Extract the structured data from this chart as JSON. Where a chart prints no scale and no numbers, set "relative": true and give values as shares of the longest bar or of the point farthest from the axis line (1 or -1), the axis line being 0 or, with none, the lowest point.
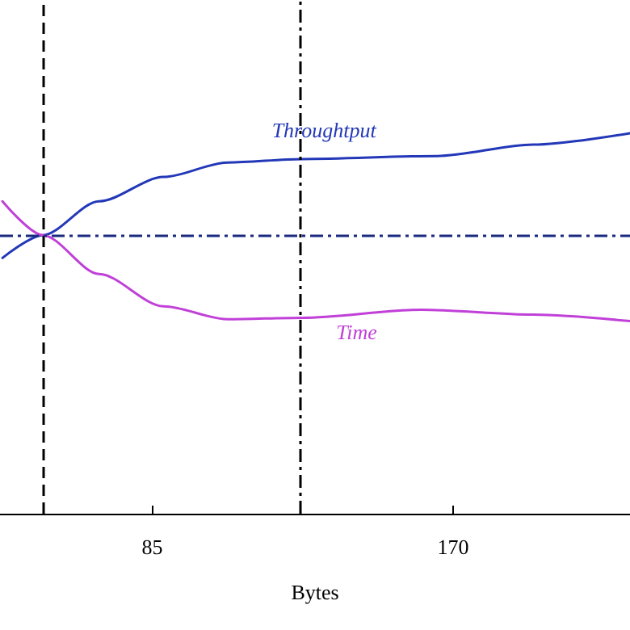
{
  "chart_data": {
    "type": "line",
    "xlabel": "Bytes",
    "relative": true,
    "xlim": [
      42,
      220
    ],
    "xticks": [
      85,
      170
    ],
    "grid": false,
    "legend": false,
    "marker": "none",
    "line_style": "solid",
    "series": [
      {
        "name": "Throughtput",
        "color": "#2338b8",
        "x": [
          42.7,
          54.1,
          70,
          88.2,
          106.4,
          127.3,
          165.5,
          192.7,
          220
        ],
        "values": [
          0.672,
          0.732,
          0.821,
          0.885,
          0.923,
          0.932,
          0.94,
          0.97,
          1
        ]
      },
      {
        "name": "Time",
        "color": "#c040d8",
        "x": [
          42.7,
          54.1,
          70,
          88.2,
          106.4,
          127.3,
          161,
          192.7,
          220
        ],
        "values": [
          0.821,
          0.732,
          0.63,
          0.545,
          0.511,
          0.515,
          0.536,
          0.523,
          0.506
        ]
      }
    ],
    "ref_lines": [
      {
        "axis": "x",
        "value": 54,
        "color": "#000000",
        "line_style": "dashed"
      },
      {
        "axis": "x",
        "value": 127,
        "color": "#000000",
        "line_style": "dashdot"
      },
      {
        "axis": "y",
        "value": 0.73,
        "color": "#1a2a80",
        "line_style": "dashdot"
      }
    ]
  }
}
